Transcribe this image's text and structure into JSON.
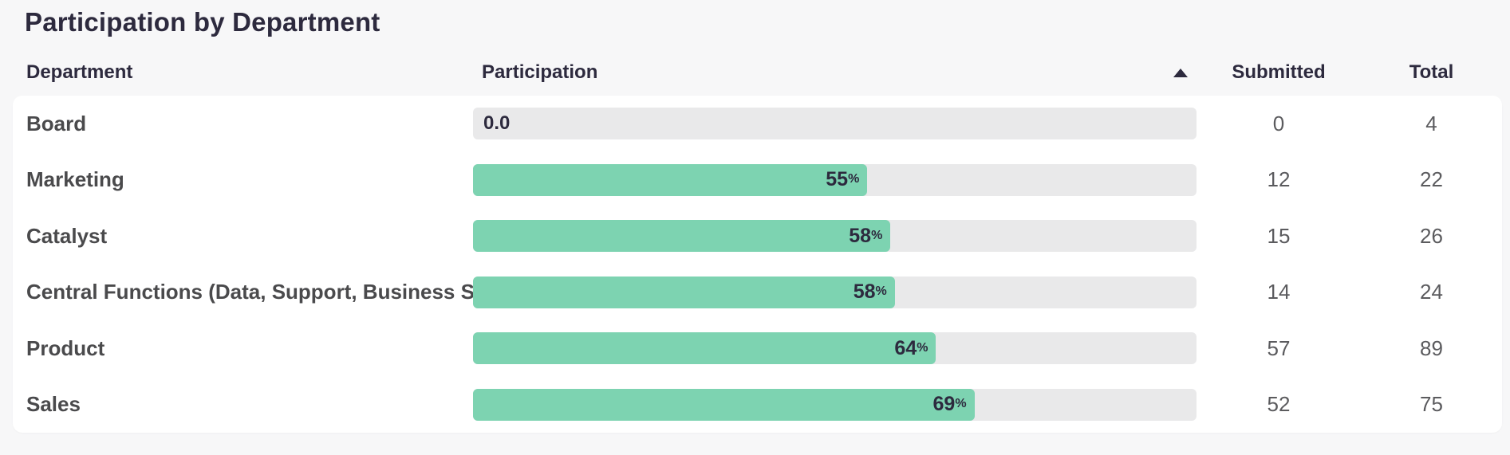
{
  "title": "Participation by Department",
  "colors": {
    "background": "#f7f7f8",
    "card": "#ffffff",
    "bar_fill": "#7dd3b1",
    "bar_track": "#e9e9ea",
    "heading_text": "#2d2a3e",
    "department_text": "#4a4a4c",
    "value_text": "#5b5b5e"
  },
  "table": {
    "columns": {
      "department": "Department",
      "participation": "Participation",
      "submitted": "Submitted",
      "total": "Total"
    },
    "sort": {
      "column": "participation",
      "direction": "ascending",
      "icon": "sort-ascending-icon"
    },
    "rows": [
      {
        "department": "Board",
        "zero_label": "0.0",
        "percent": 0,
        "percent_label": "",
        "percent_sign": "",
        "submitted": "0",
        "total": "4"
      },
      {
        "department": "Marketing",
        "percent": 54.5,
        "percent_label": "55",
        "percent_sign": "%",
        "submitted": "12",
        "total": "22"
      },
      {
        "department": "Catalyst",
        "percent": 57.7,
        "percent_label": "58",
        "percent_sign": "%",
        "submitted": "15",
        "total": "26"
      },
      {
        "department": "Central Functions (Data, Support, Business S",
        "percent": 58.3,
        "percent_label": "58",
        "percent_sign": "%",
        "submitted": "14",
        "total": "24"
      },
      {
        "department": "Product",
        "percent": 64.0,
        "percent_label": "64",
        "percent_sign": "%",
        "submitted": "57",
        "total": "89"
      },
      {
        "department": "Sales",
        "percent": 69.3,
        "percent_label": "69",
        "percent_sign": "%",
        "submitted": "52",
        "total": "75"
      }
    ]
  },
  "chart_data": {
    "type": "bar",
    "orientation": "horizontal",
    "title": "Participation by Department",
    "categories": [
      "Board",
      "Marketing",
      "Catalyst",
      "Central Functions (Data, Support, Business S",
      "Product",
      "Sales"
    ],
    "series": [
      {
        "name": "Participation %",
        "values": [
          0.0,
          55,
          58,
          58,
          64,
          69
        ]
      },
      {
        "name": "Submitted",
        "values": [
          0,
          12,
          15,
          14,
          57,
          52
        ]
      },
      {
        "name": "Total",
        "values": [
          4,
          22,
          26,
          24,
          89,
          75
        ]
      }
    ],
    "xlim": [
      0,
      100
    ],
    "bar_label_format": "percent, bold, inside bar right end; zero shown as '0.0' at track left",
    "grid": false,
    "legend": false
  }
}
